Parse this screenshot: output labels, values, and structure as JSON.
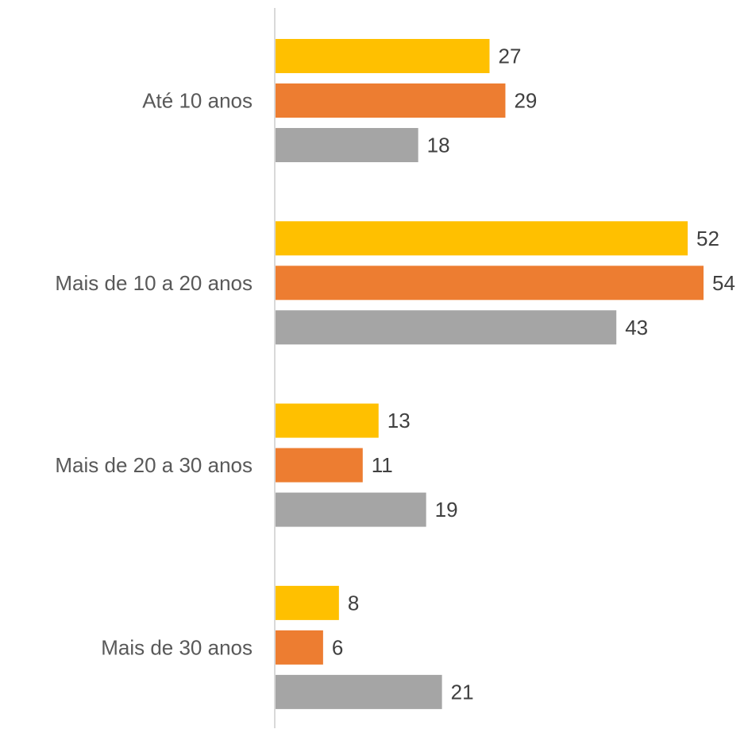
{
  "chart_data": {
    "type": "bar",
    "orientation": "horizontal",
    "categories": [
      "Até 10 anos",
      "Mais de 10 a 20 anos",
      "Mais de 20 a 30 anos",
      "Mais de 30 anos"
    ],
    "series": [
      {
        "color": "#FFC000",
        "values": [
          27,
          52,
          13,
          8
        ]
      },
      {
        "color": "#ED7D31",
        "values": [
          29,
          54,
          11,
          6
        ]
      },
      {
        "color": "#A5A5A5",
        "values": [
          18,
          43,
          19,
          21
        ]
      }
    ],
    "xlim": [
      0,
      54
    ],
    "grid": false,
    "axis_line_color": "#D9D9D9"
  }
}
